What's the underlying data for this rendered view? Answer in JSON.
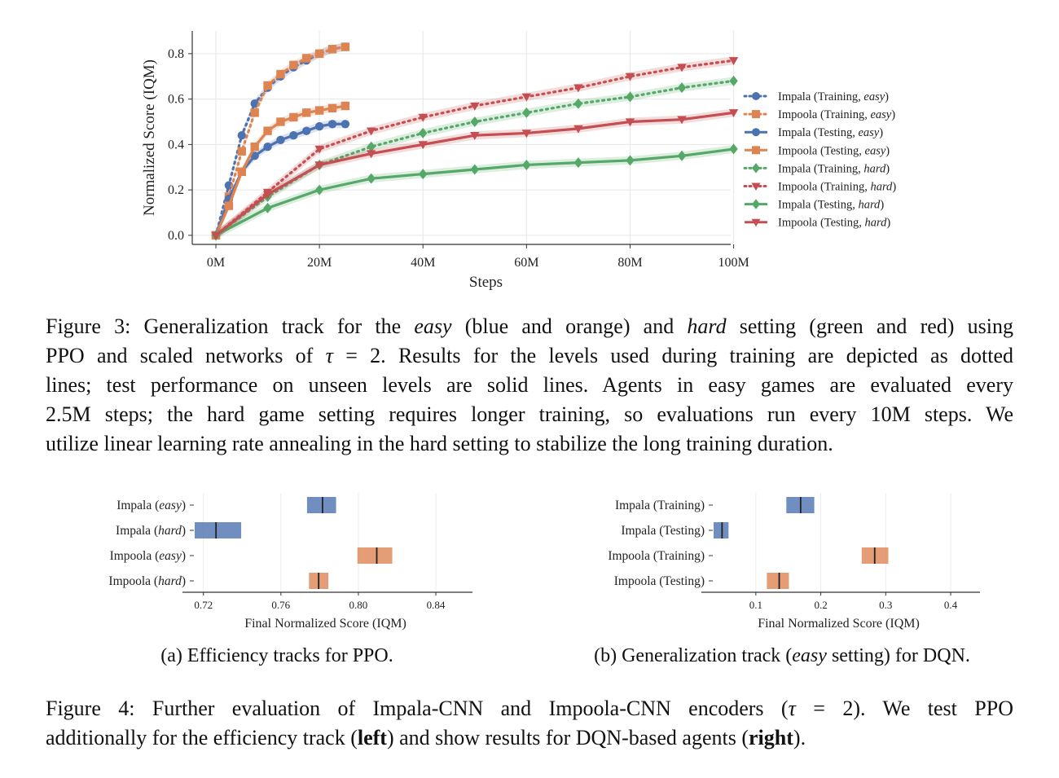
{
  "figure3": {
    "chart_data": {
      "type": "line",
      "xlabel": "Steps",
      "ylabel": "Normalized Score (IQM)",
      "xlim": [
        0,
        104000000
      ],
      "ylim": [
        -0.04,
        0.9
      ],
      "x_ticks": [
        0,
        20000000,
        40000000,
        60000000,
        80000000,
        100000000
      ],
      "x_tick_labels": [
        "0M",
        "20M",
        "40M",
        "60M",
        "80M",
        "100M"
      ],
      "y_ticks": [
        0.0,
        0.2,
        0.4,
        0.6,
        0.8
      ],
      "y_tick_labels": [
        "0.0",
        "0.2",
        "0.4",
        "0.6",
        "0.8"
      ],
      "grid": true,
      "legend_position": "right",
      "series": [
        {
          "name": "Impala (Training, easy)",
          "name_plain": "Impala (Training, ",
          "name_em": "easy",
          "color": "#4c72b0",
          "style": "dotted",
          "marker": "circle",
          "x": [
            0,
            2500000,
            5000000,
            7500000,
            10000000,
            12500000,
            15000000,
            17500000,
            20000000,
            22500000,
            25000000
          ],
          "y": [
            0.0,
            0.22,
            0.44,
            0.58,
            0.65,
            0.7,
            0.74,
            0.77,
            0.8,
            0.82,
            0.83
          ]
        },
        {
          "name": "Impoola (Training, easy)",
          "name_plain": "Impoola (Training, ",
          "name_em": "easy",
          "color": "#dd8452",
          "style": "dotted",
          "marker": "square",
          "x": [
            0,
            2500000,
            5000000,
            7500000,
            10000000,
            12500000,
            15000000,
            17500000,
            20000000,
            22500000,
            25000000
          ],
          "y": [
            0.0,
            0.17,
            0.37,
            0.54,
            0.66,
            0.71,
            0.75,
            0.78,
            0.8,
            0.82,
            0.83
          ]
        },
        {
          "name": "Impala (Testing, easy)",
          "name_plain": "Impala (Testing, ",
          "name_em": "easy",
          "color": "#4c72b0",
          "style": "solid",
          "marker": "circle",
          "x": [
            0,
            2500000,
            5000000,
            7500000,
            10000000,
            12500000,
            15000000,
            17500000,
            20000000,
            22500000,
            25000000
          ],
          "y": [
            0.0,
            0.16,
            0.28,
            0.35,
            0.39,
            0.42,
            0.44,
            0.46,
            0.48,
            0.49,
            0.49
          ]
        },
        {
          "name": "Impoola (Testing, easy)",
          "name_plain": "Impoola (Testing, ",
          "name_em": "easy",
          "color": "#dd8452",
          "style": "solid",
          "marker": "square",
          "x": [
            0,
            2500000,
            5000000,
            7500000,
            10000000,
            12500000,
            15000000,
            17500000,
            20000000,
            22500000,
            25000000
          ],
          "y": [
            0.0,
            0.13,
            0.28,
            0.39,
            0.46,
            0.5,
            0.52,
            0.54,
            0.55,
            0.56,
            0.57
          ]
        },
        {
          "name": "Impala (Training, hard)",
          "name_plain": "Impala (Training, ",
          "name_em": "hard",
          "color": "#55a868",
          "style": "dotted",
          "marker": "diamond",
          "x": [
            0,
            10000000,
            20000000,
            30000000,
            40000000,
            50000000,
            60000000,
            70000000,
            80000000,
            90000000,
            100000000
          ],
          "y": [
            0.0,
            0.17,
            0.31,
            0.39,
            0.45,
            0.5,
            0.54,
            0.58,
            0.61,
            0.65,
            0.68
          ]
        },
        {
          "name": "Impoola (Training, hard)",
          "name_plain": "Impoola (Training, ",
          "name_em": "hard",
          "color": "#c44e52",
          "style": "dotted",
          "marker": "triangle-down",
          "x": [
            0,
            10000000,
            20000000,
            30000000,
            40000000,
            50000000,
            60000000,
            70000000,
            80000000,
            90000000,
            100000000
          ],
          "y": [
            0.0,
            0.19,
            0.38,
            0.46,
            0.52,
            0.57,
            0.61,
            0.65,
            0.7,
            0.74,
            0.77
          ]
        },
        {
          "name": "Impala (Testing, hard)",
          "name_plain": "Impala (Testing, ",
          "name_em": "hard",
          "color": "#55a868",
          "style": "solid",
          "marker": "diamond",
          "x": [
            0,
            10000000,
            20000000,
            30000000,
            40000000,
            50000000,
            60000000,
            70000000,
            80000000,
            90000000,
            100000000
          ],
          "y": [
            0.0,
            0.12,
            0.2,
            0.25,
            0.27,
            0.29,
            0.31,
            0.32,
            0.33,
            0.35,
            0.38
          ]
        },
        {
          "name": "Impoola (Testing, hard)",
          "name_plain": "Impoola (Testing, ",
          "name_em": "hard",
          "color": "#c44e52",
          "style": "solid",
          "marker": "triangle-down",
          "x": [
            0,
            10000000,
            20000000,
            30000000,
            40000000,
            50000000,
            60000000,
            70000000,
            80000000,
            90000000,
            100000000
          ],
          "y": [
            0.0,
            0.18,
            0.31,
            0.36,
            0.4,
            0.44,
            0.45,
            0.47,
            0.5,
            0.51,
            0.54
          ]
        }
      ]
    },
    "caption_lines": [
      [
        {
          "t": "Figure 3: Generalization track for the "
        },
        {
          "t": "easy",
          "i": true
        },
        {
          "t": " (blue and orange) and "
        },
        {
          "t": "hard",
          "i": true
        },
        {
          "t": " setting (green and red) using"
        }
      ],
      [
        {
          "t": "PPO and scaled networks of "
        },
        {
          "t": "τ",
          "i": true
        },
        {
          "t": " = 2. Results for the levels used during training are depicted as dotted"
        }
      ],
      [
        {
          "t": "lines; test performance on unseen levels are solid lines.  Agents in easy games are evaluated every"
        }
      ],
      [
        {
          "t": "2.5M steps; the hard game setting requires longer training, so evaluations run every 10M steps. We"
        }
      ],
      [
        {
          "t": "utilize linear learning rate annealing in the hard setting to stabilize the long training duration."
        }
      ]
    ]
  },
  "figure4a": {
    "chart_data": {
      "type": "bar",
      "orientation": "horizontal",
      "xlabel": "Final Normalized Score (IQM)",
      "xlim": [
        0.7155,
        0.8505
      ],
      "x_ticks": [
        0.72,
        0.76,
        0.8,
        0.84
      ],
      "x_tick_labels": [
        "0.72",
        "0.76",
        "0.80",
        "0.84"
      ],
      "grid": true,
      "categories": [
        {
          "plain": "Impala (",
          "em": "easy",
          "end": ")"
        },
        {
          "plain": "Impala (",
          "em": "hard",
          "end": ")"
        },
        {
          "plain": "Impoola (",
          "em": "easy",
          "end": ")"
        },
        {
          "plain": "Impoola (",
          "em": "hard",
          "end": ")"
        }
      ],
      "intervals": [
        {
          "low": 0.7735,
          "high": 0.7885,
          "point": 0.7815,
          "color": "#4c72b0"
        },
        {
          "low": 0.7155,
          "high": 0.7395,
          "point": 0.7265,
          "color": "#4c72b0"
        },
        {
          "low": 0.7995,
          "high": 0.8175,
          "point": 0.8095,
          "color": "#dd8452"
        },
        {
          "low": 0.7745,
          "high": 0.7845,
          "point": 0.7795,
          "color": "#dd8452"
        }
      ]
    },
    "subcaption": "(a) Efficiency tracks for PPO."
  },
  "figure4b": {
    "chart_data": {
      "type": "bar",
      "orientation": "horizontal",
      "xlabel": "Final Normalized Score (IQM)",
      "xlim": [
        0.035,
        0.42
      ],
      "x_ticks": [
        0.1,
        0.2,
        0.3,
        0.4
      ],
      "x_tick_labels": [
        "0.1",
        "0.2",
        "0.3",
        "0.4"
      ],
      "grid": true,
      "categories": [
        {
          "plain": "Impala (Training)"
        },
        {
          "plain": "Impala (Testing)"
        },
        {
          "plain": "Impoola (Training)"
        },
        {
          "plain": "Impoola (Testing)"
        }
      ],
      "intervals": [
        {
          "low": 0.147,
          "high": 0.19,
          "point": 0.169,
          "color": "#4c72b0"
        },
        {
          "low": 0.035,
          "high": 0.058,
          "point": 0.048,
          "color": "#4c72b0"
        },
        {
          "low": 0.263,
          "high": 0.304,
          "point": 0.283,
          "color": "#dd8452"
        },
        {
          "low": 0.117,
          "high": 0.151,
          "point": 0.136,
          "color": "#dd8452"
        }
      ]
    },
    "subcaption_parts": [
      {
        "t": "(b) Generalization track ("
      },
      {
        "t": "easy",
        "i": true
      },
      {
        "t": " setting) for DQN."
      }
    ]
  },
  "figure4_caption_lines": [
    [
      {
        "t": "Figure 4:  Further evaluation of Impala-CNN and Impoola-CNN encoders ("
      },
      {
        "t": "τ",
        "i": true
      },
      {
        "t": " = 2).  We test PPO"
      }
    ],
    [
      {
        "t": "additionally for the efficiency track ("
      },
      {
        "t": "left",
        "b": true
      },
      {
        "t": ") and show results for DQN-based agents ("
      },
      {
        "t": "right",
        "b": true
      },
      {
        "t": ")."
      }
    ]
  ]
}
